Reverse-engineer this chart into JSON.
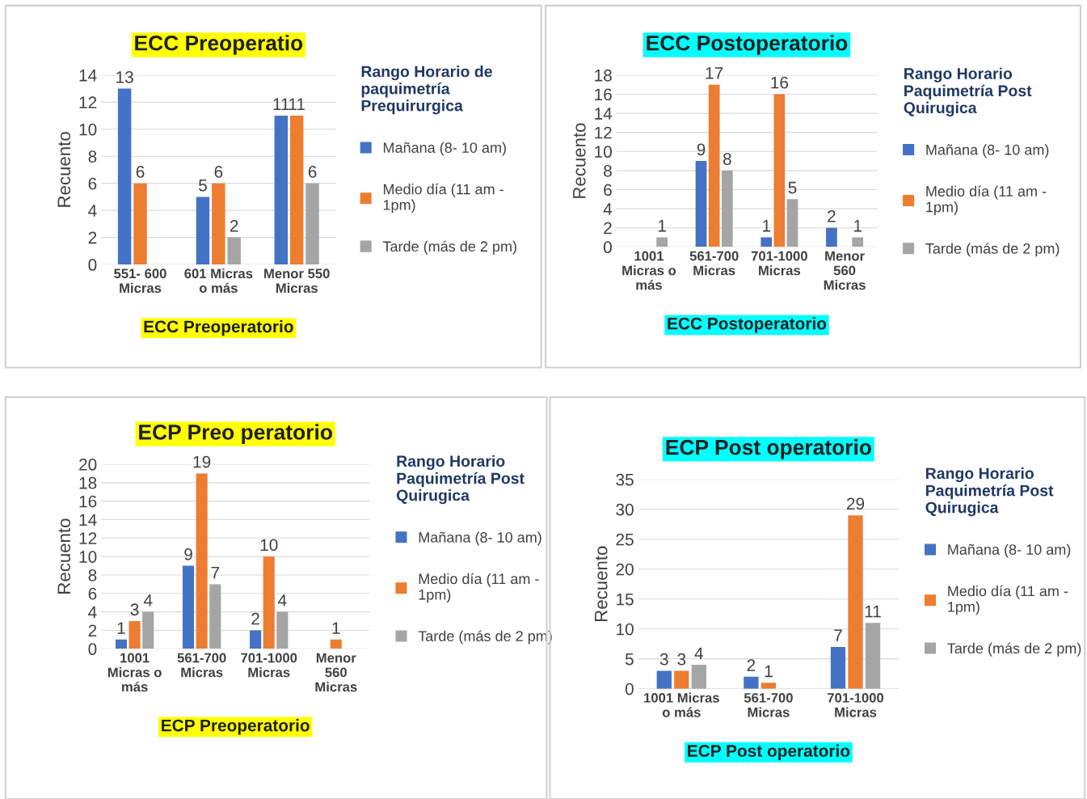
{
  "chart_data": [
    {
      "type": "bar",
      "title": "ECC Preoperatio",
      "xlabel": "ECC Preoperatorio",
      "ylabel": "Recuento",
      "legend_title": "Rango Horario de\npaquimetría\nPrequirurgica",
      "categories": [
        "551- 600\nMicras",
        "601 Micras\no más",
        "Menor 550\nMicras"
      ],
      "series": [
        {
          "name": "Mañana (8- 10 am)",
          "color": "#4472c4",
          "values": [
            13,
            5,
            11
          ]
        },
        {
          "name": "Medio día (11 am -\n1pm)",
          "color": "#ed7d31",
          "values": [
            6,
            6,
            11
          ]
        },
        {
          "name": "Tarde (más de 2 pm)",
          "color": "#a5a5a5",
          "values": [
            null,
            2,
            6
          ]
        }
      ],
      "ylim": [
        0,
        14
      ],
      "yticks": [
        0,
        2,
        4,
        6,
        8,
        10,
        12,
        14
      ],
      "grid": "y",
      "legend": "right",
      "data_labels": true
    },
    {
      "type": "bar",
      "title": "ECC Postoperatorio",
      "xlabel": "ECC Postoperatorio",
      "ylabel": "Recuento",
      "legend_title": "Rango Horario\nPaquimetría Post\nQuirugica",
      "categories": [
        "1001\nMicras o\nmás",
        "561-700\nMicras",
        "701-1000\nMicras",
        "Menor\n560\nMicras"
      ],
      "series": [
        {
          "name": "Mañana (8- 10 am)",
          "color": "#4472c4",
          "values": [
            null,
            9,
            1,
            2
          ]
        },
        {
          "name": "Medio día (11 am -\n1pm)",
          "color": "#ed7d31",
          "values": [
            null,
            17,
            16,
            null
          ]
        },
        {
          "name": "Tarde (más de 2 pm)",
          "color": "#a5a5a5",
          "values": [
            1,
            8,
            5,
            1
          ]
        }
      ],
      "ylim": [
        0,
        18
      ],
      "yticks": [
        0,
        2,
        4,
        6,
        8,
        10,
        12,
        14,
        16,
        18
      ],
      "grid": "y",
      "legend": "right",
      "data_labels": true
    },
    {
      "type": "bar",
      "title": "ECP Preo peratorio",
      "xlabel": "ECP Preoperatorio",
      "ylabel": "Recuento",
      "legend_title": "Rango Horario\nPaquimetría Post\nQuirugica",
      "categories": [
        "1001\nMicras o\nmás",
        "561-700\nMicras",
        "701-1000\nMicras",
        "Menor\n560\nMicras"
      ],
      "series": [
        {
          "name": "Mañana (8- 10 am)",
          "color": "#4472c4",
          "values": [
            1,
            9,
            2,
            null
          ]
        },
        {
          "name": "Medio día (11 am -\n1pm)",
          "color": "#ed7d31",
          "values": [
            3,
            19,
            10,
            1
          ]
        },
        {
          "name": "Tarde (más de 2 pm)",
          "color": "#a5a5a5",
          "values": [
            4,
            7,
            4,
            null
          ]
        }
      ],
      "ylim": [
        0,
        20
      ],
      "yticks": [
        0,
        2,
        4,
        6,
        8,
        10,
        12,
        14,
        16,
        18,
        20
      ],
      "grid": "y",
      "legend": "right",
      "data_labels": true
    },
    {
      "type": "bar",
      "title": "ECP Post operatorio",
      "xlabel": "ECP Post operatorio",
      "ylabel": "Recuento",
      "legend_title": "Rango Horario\nPaquimetría Post\nQuirugica",
      "categories": [
        "1001 Micras\no más",
        "561-700\nMicras",
        "701-1000\nMicras"
      ],
      "series": [
        {
          "name": "Mañana (8- 10 am)",
          "color": "#4472c4",
          "values": [
            3,
            2,
            7
          ]
        },
        {
          "name": "Medio día (11 am -\n1pm)",
          "color": "#ed7d31",
          "values": [
            3,
            1,
            29
          ]
        },
        {
          "name": "Tarde (más de 2 pm)",
          "color": "#a5a5a5",
          "values": [
            4,
            null,
            11
          ]
        }
      ],
      "ylim": [
        0,
        35
      ],
      "yticks": [
        0,
        5,
        10,
        15,
        20,
        25,
        30,
        35
      ],
      "grid": "y",
      "legend": "right",
      "data_labels": true
    }
  ]
}
